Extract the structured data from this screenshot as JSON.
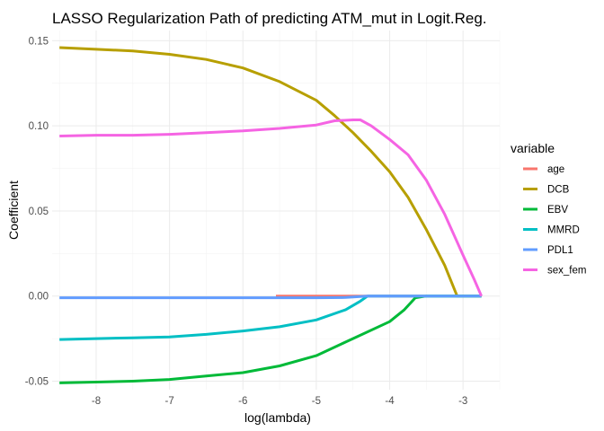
{
  "chart_data": {
    "type": "line",
    "title": "LASSO Regularization Path of predicting ATM_mut in Logit.Reg.",
    "xlabel": "log(lambda)",
    "ylabel": "Coefficient",
    "xlim": [
      -8.6,
      -2.5
    ],
    "ylim": [
      -0.055,
      0.156
    ],
    "x_ticks": [
      -8,
      -7,
      -6,
      -5,
      -4,
      -3
    ],
    "y_ticks": [
      -0.05,
      0.0,
      0.05,
      0.1,
      0.15
    ],
    "y_tick_labels": [
      "-0.05",
      "0.00",
      "0.05",
      "0.10",
      "0.15"
    ],
    "grid": true,
    "legend": {
      "title": "variable",
      "position": "right"
    },
    "series": [
      {
        "name": "age",
        "color": "#F8766D",
        "points": [
          [
            -5.55,
            0.0
          ],
          [
            -3.5,
            0.0
          ]
        ]
      },
      {
        "name": "DCB",
        "color": "#B79F00",
        "points": [
          [
            -8.5,
            0.146
          ],
          [
            -8.0,
            0.145
          ],
          [
            -7.5,
            0.144
          ],
          [
            -7.0,
            0.142
          ],
          [
            -6.5,
            0.139
          ],
          [
            -6.0,
            0.134
          ],
          [
            -5.5,
            0.126
          ],
          [
            -5.0,
            0.115
          ],
          [
            -4.75,
            0.106
          ],
          [
            -4.5,
            0.096
          ],
          [
            -4.25,
            0.085
          ],
          [
            -4.0,
            0.073
          ],
          [
            -3.75,
            0.058
          ],
          [
            -3.5,
            0.039
          ],
          [
            -3.25,
            0.018
          ],
          [
            -3.08,
            0.0
          ],
          [
            -2.75,
            0.0
          ]
        ]
      },
      {
        "name": "EBV",
        "color": "#00BA38",
        "points": [
          [
            -8.5,
            -0.051
          ],
          [
            -8.0,
            -0.0505
          ],
          [
            -7.5,
            -0.05
          ],
          [
            -7.0,
            -0.049
          ],
          [
            -6.5,
            -0.047
          ],
          [
            -6.0,
            -0.045
          ],
          [
            -5.5,
            -0.041
          ],
          [
            -5.0,
            -0.035
          ],
          [
            -4.5,
            -0.025
          ],
          [
            -4.0,
            -0.015
          ],
          [
            -3.8,
            -0.008
          ],
          [
            -3.65,
            -0.001
          ],
          [
            -3.5,
            0.0
          ],
          [
            -2.75,
            0.0
          ]
        ]
      },
      {
        "name": "MMRD",
        "color": "#00BFC4",
        "points": [
          [
            -8.5,
            -0.0255
          ],
          [
            -8.0,
            -0.025
          ],
          [
            -7.5,
            -0.0245
          ],
          [
            -7.0,
            -0.024
          ],
          [
            -6.5,
            -0.0225
          ],
          [
            -6.0,
            -0.0205
          ],
          [
            -5.5,
            -0.018
          ],
          [
            -5.0,
            -0.014
          ],
          [
            -4.6,
            -0.008
          ],
          [
            -4.4,
            -0.003
          ],
          [
            -4.3,
            0.0
          ],
          [
            -2.75,
            0.0
          ]
        ]
      },
      {
        "name": "PDL1",
        "color": "#619CFF",
        "points": [
          [
            -8.5,
            -0.001
          ],
          [
            -5.0,
            -0.001
          ],
          [
            -4.6,
            -0.0008
          ],
          [
            -4.3,
            0.0
          ],
          [
            -2.75,
            0.0
          ]
        ]
      },
      {
        "name": "sex_fem",
        "color": "#F564E3",
        "points": [
          [
            -8.5,
            0.094
          ],
          [
            -8.0,
            0.0945
          ],
          [
            -7.5,
            0.0945
          ],
          [
            -7.0,
            0.095
          ],
          [
            -6.5,
            0.096
          ],
          [
            -6.0,
            0.097
          ],
          [
            -5.5,
            0.0985
          ],
          [
            -5.0,
            0.1005
          ],
          [
            -4.75,
            0.103
          ],
          [
            -4.5,
            0.1035
          ],
          [
            -4.4,
            0.1035
          ],
          [
            -4.25,
            0.1
          ],
          [
            -4.0,
            0.092
          ],
          [
            -3.75,
            0.083
          ],
          [
            -3.5,
            0.068
          ],
          [
            -3.25,
            0.048
          ],
          [
            -3.0,
            0.024
          ],
          [
            -2.85,
            0.01
          ],
          [
            -2.75,
            0.0
          ]
        ]
      }
    ]
  }
}
